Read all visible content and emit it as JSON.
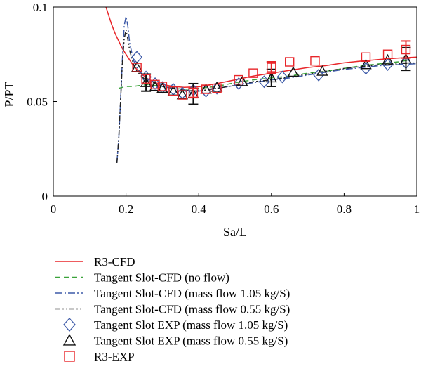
{
  "chart_data": {
    "type": "line",
    "xlabel": "Sa/L",
    "ylabel": "P/PT",
    "xlim": [
      0,
      1
    ],
    "ylim": [
      0,
      0.1
    ],
    "xticks": [
      0,
      0.2,
      0.4,
      0.6,
      0.8,
      1
    ],
    "xtick_labels": [
      "0",
      "0.2",
      "0.4",
      "0.6",
      "0.8",
      "1"
    ],
    "yticks": [
      0,
      0.05,
      0.1
    ],
    "ytick_labels": [
      "0",
      "0.05",
      "0.1"
    ],
    "grid": false,
    "legend_position": "below",
    "series": [
      {
        "name": "R3-CFD",
        "kind": "line",
        "color": "#e8262a",
        "dash": "solid",
        "x": [
          0.145,
          0.15,
          0.16,
          0.17,
          0.18,
          0.19,
          0.2,
          0.21,
          0.22,
          0.23,
          0.24,
          0.26,
          0.28,
          0.3,
          0.33,
          0.36,
          0.4,
          0.45,
          0.5,
          0.55,
          0.6,
          0.65,
          0.7,
          0.75,
          0.8,
          0.85,
          0.9,
          0.95,
          1.0
        ],
        "y": [
          0.1,
          0.097,
          0.091,
          0.086,
          0.082,
          0.078,
          0.075,
          0.072,
          0.069,
          0.067,
          0.065,
          0.062,
          0.06,
          0.059,
          0.058,
          0.0575,
          0.0578,
          0.0595,
          0.0615,
          0.0635,
          0.065,
          0.0665,
          0.068,
          0.069,
          0.0705,
          0.0715,
          0.0723,
          0.073,
          0.0735
        ]
      },
      {
        "name": "Tangent Slot-CFD (no flow)",
        "kind": "line",
        "color": "#3aa33a",
        "dash": "7,5",
        "x": [
          0.18,
          0.19,
          0.2,
          0.22,
          0.24,
          0.26,
          0.28,
          0.3,
          0.33,
          0.36,
          0.4,
          0.45,
          0.5,
          0.55,
          0.6,
          0.65,
          0.7,
          0.75,
          0.8,
          0.85,
          0.9,
          0.95,
          0.98
        ],
        "y": [
          0.057,
          0.0575,
          0.058,
          0.058,
          0.0585,
          0.059,
          0.0585,
          0.058,
          0.057,
          0.0565,
          0.057,
          0.058,
          0.06,
          0.0615,
          0.0625,
          0.0635,
          0.065,
          0.066,
          0.0675,
          0.069,
          0.07,
          0.071,
          0.072
        ]
      },
      {
        "name": "Tangent Slot-CFD (mass flow 1.05 kg/S)",
        "kind": "line",
        "color": "#3d5aa8",
        "dash": "10,3,2,3",
        "x": [
          0.175,
          0.18,
          0.185,
          0.19,
          0.195,
          0.2,
          0.205,
          0.21,
          0.22,
          0.23,
          0.25,
          0.28,
          0.3,
          0.33,
          0.36,
          0.4,
          0.45,
          0.5,
          0.55,
          0.6,
          0.65,
          0.7,
          0.75,
          0.8,
          0.85,
          0.9,
          0.95,
          1.0
        ],
        "y": [
          0.0175,
          0.03,
          0.05,
          0.072,
          0.09,
          0.095,
          0.09,
          0.081,
          0.072,
          0.068,
          0.063,
          0.06,
          0.058,
          0.057,
          0.056,
          0.0555,
          0.057,
          0.0585,
          0.06,
          0.0615,
          0.0625,
          0.064,
          0.0655,
          0.067,
          0.068,
          0.069,
          0.0695,
          0.07
        ]
      },
      {
        "name": "Tangent Slot-CFD (mass flow 0.55 kg/S)",
        "kind": "line",
        "color": "#222222",
        "dash": "7,3,2,3,2,3",
        "x": [
          0.175,
          0.18,
          0.185,
          0.19,
          0.195,
          0.2,
          0.205,
          0.21,
          0.22,
          0.23,
          0.25,
          0.28,
          0.3,
          0.33,
          0.36,
          0.4,
          0.45,
          0.5,
          0.55,
          0.6,
          0.65,
          0.7,
          0.75,
          0.8,
          0.85,
          0.9,
          0.95,
          1.0
        ],
        "y": [
          0.0175,
          0.03,
          0.05,
          0.07,
          0.083,
          0.088,
          0.083,
          0.077,
          0.07,
          0.066,
          0.062,
          0.0595,
          0.058,
          0.057,
          0.056,
          0.0555,
          0.057,
          0.0585,
          0.0605,
          0.0615,
          0.063,
          0.0645,
          0.066,
          0.0675,
          0.0685,
          0.0695,
          0.07,
          0.0705
        ]
      },
      {
        "name": "Tangent Slot EXP (mass flow 1.05 kg/S)",
        "kind": "marker",
        "marker": "diamond",
        "color": "#3d5aa8",
        "x": [
          0.23,
          0.255,
          0.28,
          0.3,
          0.33,
          0.355,
          0.385,
          0.42,
          0.45,
          0.51,
          0.58,
          0.63,
          0.73,
          0.86,
          0.92,
          0.97
        ],
        "y": [
          0.0735,
          0.063,
          0.0595,
          0.0575,
          0.0565,
          0.0545,
          0.056,
          0.0555,
          0.057,
          0.0595,
          0.0605,
          0.063,
          0.064,
          0.0675,
          0.0695,
          0.0705
        ]
      },
      {
        "name": "Tangent Slot EXP (mass flow 0.55 kg/S)",
        "kind": "marker",
        "marker": "triangle",
        "color": "#111111",
        "x": [
          0.23,
          0.255,
          0.28,
          0.3,
          0.33,
          0.355,
          0.385,
          0.42,
          0.45,
          0.52,
          0.6,
          0.66,
          0.74,
          0.86,
          0.92,
          0.97
        ],
        "y": [
          0.068,
          0.06,
          0.058,
          0.057,
          0.0555,
          0.0535,
          0.054,
          0.0565,
          0.0575,
          0.0605,
          0.0625,
          0.0655,
          0.066,
          0.0695,
          0.072,
          0.0725
        ],
        "err": [
          0,
          0.0045,
          0,
          0,
          0,
          0,
          0.0055,
          0,
          0,
          0,
          0.0045,
          0,
          0,
          0,
          0,
          0.006
        ]
      },
      {
        "name": "R3-EXP",
        "kind": "marker",
        "marker": "square",
        "color": "#e8262a",
        "x": [
          0.23,
          0.255,
          0.28,
          0.3,
          0.33,
          0.355,
          0.385,
          0.42,
          0.45,
          0.51,
          0.55,
          0.6,
          0.65,
          0.72,
          0.86,
          0.92,
          0.97
        ],
        "y": [
          0.068,
          0.062,
          0.059,
          0.058,
          0.0555,
          0.0535,
          0.0545,
          0.0565,
          0.057,
          0.0615,
          0.065,
          0.068,
          0.071,
          0.0715,
          0.0735,
          0.075,
          0.0775
        ],
        "err": [
          0,
          0,
          0,
          0,
          0,
          0,
          0.0025,
          0,
          0,
          0,
          0,
          0.003,
          0,
          0,
          0,
          0,
          0.0045
        ]
      }
    ]
  }
}
